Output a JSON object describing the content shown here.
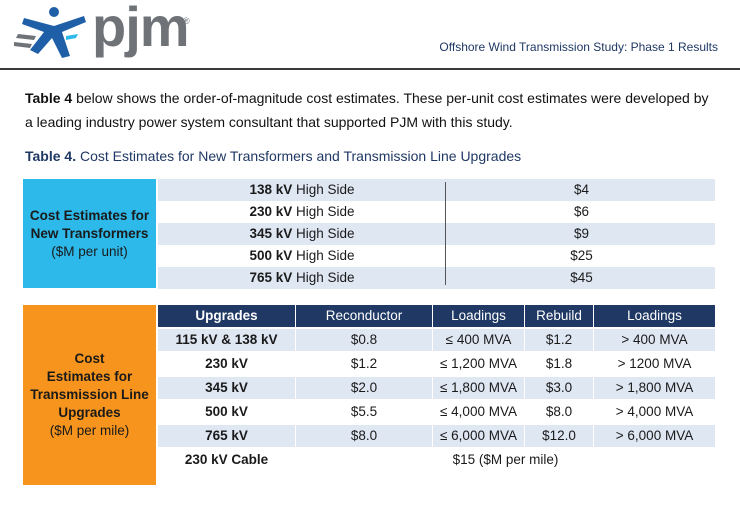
{
  "header": {
    "logo_text": "pjm",
    "logo_reg": "®",
    "doc_title": "Offshore Wind Transmission Study: Phase 1 Results"
  },
  "intro": {
    "bold_lead": "Table 4",
    "text": " below shows the order-of-magnitude cost estimates. These per-unit cost estimates were developed by a leading industry power system consultant that supported PJM with this study."
  },
  "caption": {
    "label": "Table 4.",
    "text": " Cost Estimates for New Transformers and Transmission Line Upgrades"
  },
  "transformers": {
    "label_line1": "Cost Estimates for",
    "label_line2": "New Transformers",
    "label_line3": "($M per unit)",
    "rows": [
      {
        "kv": "138 kV",
        "side": " High Side",
        "cost": "$4"
      },
      {
        "kv": "230 kV",
        "side": " High Side",
        "cost": "$6"
      },
      {
        "kv": "345 kV",
        "side": " High Side",
        "cost": "$9"
      },
      {
        "kv": "500 kV",
        "side": " High Side",
        "cost": "$25"
      },
      {
        "kv": "765 kV",
        "side": " High Side",
        "cost": "$45"
      }
    ]
  },
  "lines": {
    "label_line1": "Cost",
    "label_line2": "Estimates for",
    "label_line3": "Transmission Line",
    "label_line4": "Upgrades",
    "label_line5": "($M per mile)",
    "headers": [
      "Upgrades",
      "Reconductor",
      "Loadings",
      "Rebuild",
      "Loadings"
    ],
    "rows": [
      [
        "115 kV & 138 kV",
        "$0.8",
        "≤ 400 MVA",
        "$1.2",
        "> 400 MVA"
      ],
      [
        "230 kV",
        "$1.2",
        "≤ 1,200 MVA",
        "$1.8",
        "> 1200 MVA"
      ],
      [
        "345 kV",
        "$2.0",
        "≤ 1,800 MVA",
        "$3.0",
        "> 1,800 MVA"
      ],
      [
        "500 kV",
        "$5.5",
        "≤ 4,000 MVA",
        "$8.0",
        "> 4,000 MVA"
      ],
      [
        "765 kV",
        "$8.0",
        "≤ 6,000 MVA",
        "$12.0",
        "> 6,000 MVA"
      ]
    ],
    "cable_label": "230 kV Cable",
    "cable_value": "$15 ($M per mile)"
  },
  "colors": {
    "transformer_band": "#2db9ea",
    "line_band": "#f7941d",
    "header_navy": "#1f3864",
    "row_shade": "#dfe7f3"
  }
}
